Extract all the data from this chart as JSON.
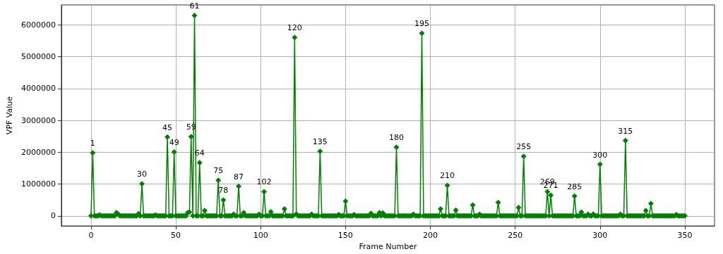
{
  "chart_data": {
    "type": "line",
    "xlabel": "Frame Number",
    "ylabel": "VPF Value",
    "x": [
      0,
      1,
      2,
      3,
      4,
      5,
      6,
      7,
      8,
      9,
      10,
      11,
      12,
      13,
      14,
      15,
      16,
      17,
      18,
      19,
      20,
      21,
      22,
      23,
      24,
      25,
      26,
      27,
      28,
      29,
      30,
      31,
      32,
      33,
      34,
      35,
      36,
      37,
      38,
      39,
      40,
      41,
      42,
      43,
      44,
      45,
      46,
      47,
      48,
      49,
      50,
      51,
      52,
      53,
      54,
      55,
      56,
      57,
      58,
      59,
      60,
      61,
      62,
      63,
      64,
      65,
      66,
      67,
      68,
      69,
      70,
      71,
      72,
      73,
      74,
      75,
      76,
      77,
      78,
      79,
      80,
      81,
      82,
      83,
      84,
      85,
      86,
      87,
      88,
      89,
      90,
      91,
      92,
      93,
      94,
      95,
      96,
      97,
      98,
      99,
      100,
      101,
      102,
      103,
      104,
      105,
      106,
      107,
      108,
      109,
      110,
      111,
      112,
      113,
      114,
      115,
      116,
      117,
      118,
      119,
      120,
      121,
      122,
      123,
      124,
      125,
      126,
      127,
      128,
      129,
      130,
      131,
      132,
      133,
      134,
      135,
      136,
      137,
      138,
      139,
      140,
      141,
      142,
      143,
      144,
      145,
      146,
      147,
      148,
      149,
      150,
      151,
      152,
      153,
      154,
      155,
      156,
      157,
      158,
      159,
      160,
      161,
      162,
      163,
      164,
      165,
      166,
      167,
      168,
      169,
      170,
      171,
      172,
      173,
      174,
      175,
      176,
      177,
      178,
      179,
      180,
      181,
      182,
      183,
      184,
      185,
      186,
      187,
      188,
      189,
      190,
      191,
      192,
      193,
      194,
      195,
      196,
      197,
      198,
      199,
      200,
      201,
      202,
      203,
      204,
      205,
      206,
      207,
      208,
      209,
      210,
      211,
      212,
      213,
      214,
      215,
      216,
      217,
      218,
      219,
      220,
      221,
      222,
      223,
      224,
      225,
      226,
      227,
      228,
      229,
      230,
      231,
      232,
      233,
      234,
      235,
      236,
      237,
      238,
      239,
      240,
      241,
      242,
      243,
      244,
      245,
      246,
      247,
      248,
      249,
      250,
      251,
      252,
      253,
      254,
      255,
      256,
      257,
      258,
      259,
      260,
      261,
      262,
      263,
      264,
      265,
      266,
      267,
      268,
      269,
      270,
      271,
      272,
      273,
      274,
      275,
      276,
      277,
      278,
      279,
      280,
      281,
      282,
      283,
      284,
      285,
      286,
      287,
      288,
      289,
      290,
      291,
      292,
      293,
      294,
      295,
      296,
      297,
      298,
      299,
      300,
      301,
      302,
      303,
      304,
      305,
      306,
      307,
      308,
      309,
      310,
      311,
      312,
      313,
      314,
      315,
      316,
      317,
      318,
      319,
      320,
      321,
      322,
      323,
      324,
      325,
      326,
      327,
      328,
      329,
      330,
      331,
      332,
      333,
      334,
      335,
      336,
      337,
      338,
      339,
      340,
      341,
      342,
      343,
      344,
      345,
      346,
      347,
      348,
      349,
      350
    ],
    "series": [
      {
        "color": "#008000",
        "values": [
          0,
          1980000,
          0,
          0,
          0,
          30000,
          0,
          0,
          0,
          0,
          0,
          0,
          0,
          0,
          0,
          100000,
          60000,
          0,
          0,
          0,
          0,
          0,
          0,
          0,
          0,
          0,
          0,
          0,
          70000,
          0,
          1010000,
          0,
          0,
          0,
          0,
          0,
          0,
          0,
          30000,
          0,
          0,
          0,
          0,
          0,
          0,
          2480000,
          0,
          0,
          0,
          2010000,
          0,
          0,
          0,
          0,
          0,
          0,
          0,
          100000,
          120000,
          2490000,
          0,
          6300000,
          0,
          0,
          1670000,
          0,
          0,
          170000,
          0,
          0,
          0,
          0,
          0,
          0,
          0,
          1120000,
          0,
          0,
          500000,
          0,
          0,
          0,
          0,
          0,
          50000,
          0,
          0,
          930000,
          0,
          0,
          100000,
          0,
          0,
          0,
          0,
          0,
          0,
          0,
          0,
          50000,
          0,
          0,
          760000,
          0,
          0,
          0,
          130000,
          0,
          0,
          0,
          0,
          0,
          0,
          0,
          220000,
          0,
          0,
          0,
          0,
          0,
          5610000,
          60000,
          0,
          0,
          0,
          0,
          0,
          0,
          0,
          0,
          50000,
          0,
          0,
          0,
          0,
          2030000,
          0,
          0,
          0,
          0,
          0,
          0,
          0,
          0,
          0,
          0,
          40000,
          0,
          0,
          0,
          460000,
          0,
          0,
          0,
          0,
          40000,
          0,
          0,
          0,
          0,
          0,
          0,
          0,
          0,
          0,
          80000,
          0,
          0,
          0,
          0,
          100000,
          0,
          90000,
          0,
          0,
          0,
          0,
          0,
          0,
          0,
          2160000,
          0,
          0,
          0,
          0,
          0,
          0,
          0,
          0,
          0,
          50000,
          0,
          0,
          0,
          0,
          5740000,
          0,
          0,
          0,
          0,
          0,
          0,
          0,
          0,
          0,
          0,
          220000,
          0,
          0,
          0,
          960000,
          0,
          0,
          0,
          0,
          180000,
          0,
          0,
          0,
          0,
          0,
          0,
          0,
          0,
          0,
          340000,
          0,
          0,
          0,
          50000,
          0,
          0,
          0,
          0,
          0,
          0,
          0,
          0,
          0,
          0,
          420000,
          0,
          0,
          0,
          0,
          0,
          0,
          0,
          0,
          0,
          0,
          0,
          260000,
          0,
          0,
          1870000,
          0,
          0,
          0,
          0,
          0,
          0,
          0,
          0,
          0,
          0,
          0,
          0,
          0,
          760000,
          0,
          650000,
          0,
          0,
          0,
          0,
          0,
          0,
          0,
          0,
          0,
          0,
          0,
          0,
          0,
          620000,
          0,
          0,
          0,
          120000,
          0,
          0,
          0,
          50000,
          0,
          0,
          60000,
          0,
          0,
          0,
          1620000,
          0,
          0,
          0,
          0,
          0,
          0,
          0,
          0,
          0,
          0,
          0,
          50000,
          0,
          0,
          2370000,
          0,
          0,
          0,
          0,
          0,
          0,
          0,
          0,
          0,
          0,
          0,
          170000,
          0,
          0,
          390000,
          0,
          0,
          0,
          0,
          0,
          0,
          0,
          0,
          0,
          0,
          0,
          0,
          0,
          0,
          40000,
          0,
          0,
          0,
          0,
          0
        ]
      }
    ],
    "xlim": [
      -17.5,
      367.5
    ],
    "xticks": [
      0,
      50,
      100,
      150,
      200,
      250,
      300,
      350
    ],
    "ylim": [
      -315000,
      6630000
    ],
    "yticks": [
      0,
      1000000,
      2000000,
      3000000,
      4000000,
      5000000,
      6000000
    ],
    "grid": true,
    "marker": "diamond",
    "line_style": "solid",
    "annotations": [
      {
        "text": "1",
        "x": 1,
        "y": 1980000
      },
      {
        "text": "30",
        "x": 30,
        "y": 1010000
      },
      {
        "text": "45",
        "x": 45,
        "y": 2480000
      },
      {
        "text": "49",
        "x": 49,
        "y": 2010000
      },
      {
        "text": "59",
        "x": 59,
        "y": 2490000
      },
      {
        "text": "61",
        "x": 61,
        "y": 6300000
      },
      {
        "text": "64",
        "x": 64,
        "y": 1670000
      },
      {
        "text": "75",
        "x": 75,
        "y": 1120000
      },
      {
        "text": "78",
        "x": 78,
        "y": 500000
      },
      {
        "text": "87",
        "x": 87,
        "y": 930000
      },
      {
        "text": "102",
        "x": 102,
        "y": 760000
      },
      {
        "text": "120",
        "x": 120,
        "y": 5610000
      },
      {
        "text": "135",
        "x": 135,
        "y": 2030000
      },
      {
        "text": "180",
        "x": 180,
        "y": 2160000
      },
      {
        "text": "195",
        "x": 195,
        "y": 5740000
      },
      {
        "text": "210",
        "x": 210,
        "y": 960000
      },
      {
        "text": "255",
        "x": 255,
        "y": 1870000
      },
      {
        "text": "269",
        "x": 269,
        "y": 760000
      },
      {
        "text": "271",
        "x": 271,
        "y": 650000
      },
      {
        "text": "285",
        "x": 285,
        "y": 620000
      },
      {
        "text": "300",
        "x": 300,
        "y": 1620000
      },
      {
        "text": "315",
        "x": 315,
        "y": 2370000
      }
    ]
  }
}
